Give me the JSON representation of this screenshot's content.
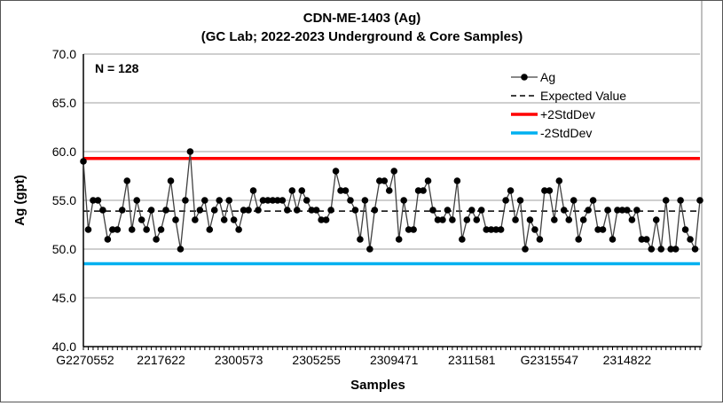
{
  "chart_data": {
    "type": "line",
    "title": "CDN-ME-1403 (Ag)",
    "subtitle": "(GC Lab; 2022-2023 Underground & Core Samples)",
    "xlabel": "Samples",
    "ylabel": "Ag (gpt)",
    "ylim": [
      40,
      70
    ],
    "yticks": [
      "40.0",
      "45.0",
      "50.0",
      "55.0",
      "60.0",
      "65.0",
      "70.0"
    ],
    "ytick_values": [
      40,
      45,
      50,
      55,
      60,
      65,
      70
    ],
    "xtick_labels": [
      "G2270552",
      "2217622",
      "2300573",
      "2305255",
      "2309471",
      "2311581",
      "G2315547",
      "2314822"
    ],
    "xtick_interval": 16,
    "grid": true,
    "annotation": "N = 128",
    "legend_position": "top-right",
    "legend": [
      "Ag",
      "Expected Value",
      "+2StdDev",
      "-2StdDev"
    ],
    "expected_value": 53.9,
    "plus_2sd": 59.3,
    "minus_2sd": 48.5,
    "colors": {
      "ag": "#000000",
      "expected": "#000000",
      "plus": "#ff0000",
      "minus": "#00b0f0",
      "grid": "#bfbfbf"
    },
    "series": [
      {
        "name": "Ag",
        "values": [
          59,
          52,
          55,
          55,
          54,
          51,
          52,
          52,
          54,
          57,
          52,
          55,
          53,
          52,
          54,
          51,
          52,
          54,
          57,
          53,
          50,
          55,
          60,
          53,
          54,
          55,
          52,
          54,
          55,
          53,
          55,
          53,
          52,
          54,
          54,
          56,
          54,
          55,
          55,
          55,
          55,
          55,
          54,
          56,
          54,
          56,
          55,
          54,
          54,
          53,
          53,
          54,
          58,
          56,
          56,
          55,
          54,
          51,
          55,
          50,
          54,
          57,
          57,
          56,
          58,
          51,
          55,
          52,
          52,
          56,
          56,
          57,
          54,
          53,
          53,
          54,
          53,
          57,
          51,
          53,
          54,
          53,
          54,
          52,
          52,
          52,
          52,
          55,
          56,
          53,
          55,
          50,
          53,
          52,
          51,
          56,
          56,
          53,
          57,
          54,
          53,
          55,
          51,
          53,
          54,
          55,
          52,
          52,
          54,
          51,
          54,
          54,
          54,
          53,
          54,
          51,
          51,
          50,
          53,
          50,
          55,
          50,
          50,
          55,
          52,
          51,
          50,
          55
        ]
      }
    ]
  }
}
